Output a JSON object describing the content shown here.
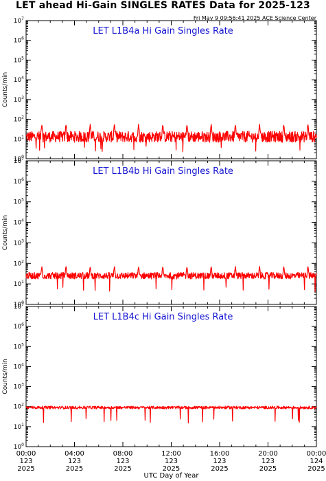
{
  "header": {
    "title": "LET ahead Hi-Gain SINGLES RATES Data for 2025-123",
    "timestamp": "Fri May  9 09:56:41 2025 ACE Science Center"
  },
  "colors": {
    "series": "#ff0000",
    "panel_title": "#1414d2",
    "axis": "#000000"
  },
  "chart_data": [
    {
      "type": "line",
      "title": "LET L1B4a Hi Gain Singles Rate",
      "ylabel": "Counts/min",
      "yscale": "log",
      "ylim": [
        1,
        10000000
      ],
      "xlim": [
        0,
        24
      ],
      "series": [
        {
          "baseline": 13,
          "noise_decades": 0.28,
          "spike_peak": 60,
          "spike_hours": [
            1.3,
            3.3,
            5.3,
            7.3,
            9.3,
            11.3,
            13.3,
            15.3,
            17.3,
            19.3,
            21.3,
            23.3
          ]
        }
      ]
    },
    {
      "type": "line",
      "title": "LET L1B4b Hi Gain Singles Rate",
      "ylabel": "Counts/min",
      "yscale": "log",
      "ylim": [
        1,
        10000000
      ],
      "xlim": [
        0,
        24
      ],
      "series": [
        {
          "baseline": 25,
          "noise_decades": 0.16,
          "spike_peak": 75,
          "spike_hours": [
            1.3,
            3.3,
            5.3,
            7.3,
            9.3,
            11.3,
            13.3,
            15.3,
            17.3,
            19.3,
            21.3,
            23.3
          ]
        }
      ]
    },
    {
      "type": "line",
      "title": "LET L1B4c Hi Gain Singles Rate",
      "ylabel": "Counts/min",
      "yscale": "log",
      "ylim": [
        1,
        10000000
      ],
      "xlim": [
        0,
        24
      ],
      "series": [
        {
          "baseline": 90,
          "noise_decades": 0.07,
          "spike_peak": 120,
          "spike_hours": []
        }
      ]
    }
  ],
  "x_axis": {
    "label": "UTC Day of Year",
    "ticks": [
      {
        "hour": 0,
        "time": "00:00",
        "doy": "123",
        "year": "2025"
      },
      {
        "hour": 4,
        "time": "04:00",
        "doy": "123",
        "year": "2025"
      },
      {
        "hour": 8,
        "time": "08:00",
        "doy": "123",
        "year": "2025"
      },
      {
        "hour": 12,
        "time": "12:00",
        "doy": "123",
        "year": "2025"
      },
      {
        "hour": 16,
        "time": "16:00",
        "doy": "123",
        "year": "2025"
      },
      {
        "hour": 20,
        "time": "20:00",
        "doy": "123",
        "year": "2025"
      },
      {
        "hour": 24,
        "time": "00:00",
        "doy": "124",
        "year": "2025"
      }
    ]
  }
}
